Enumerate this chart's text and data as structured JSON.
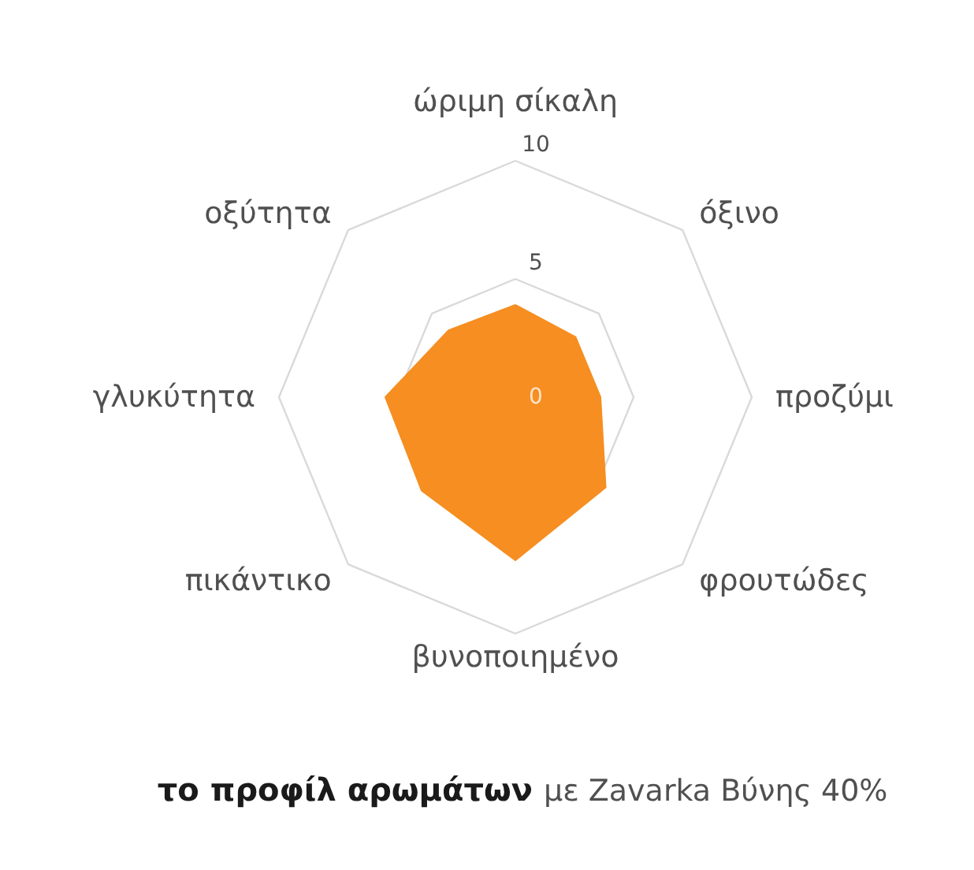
{
  "chart_data": {
    "type": "radar",
    "title": "το προφίλ αρωμάτων",
    "subtitle": "με Zavarka Βύνης 40%",
    "categories": [
      "ώριμη σίκαλη",
      "όξινο",
      "προζύμι",
      "φρουτώδες",
      "βυνοποιημένο",
      "πικάντικο",
      "γλυκύτητα",
      "οξύτητα"
    ],
    "series": [
      {
        "color": "#f68e21",
        "values": [
          3.9,
          3.6,
          3.6,
          5.4,
          6.9,
          5.6,
          5.5,
          4.0
        ]
      }
    ],
    "ylim": [
      0,
      10
    ],
    "yticks": [
      0,
      5,
      10
    ],
    "grid": true
  }
}
